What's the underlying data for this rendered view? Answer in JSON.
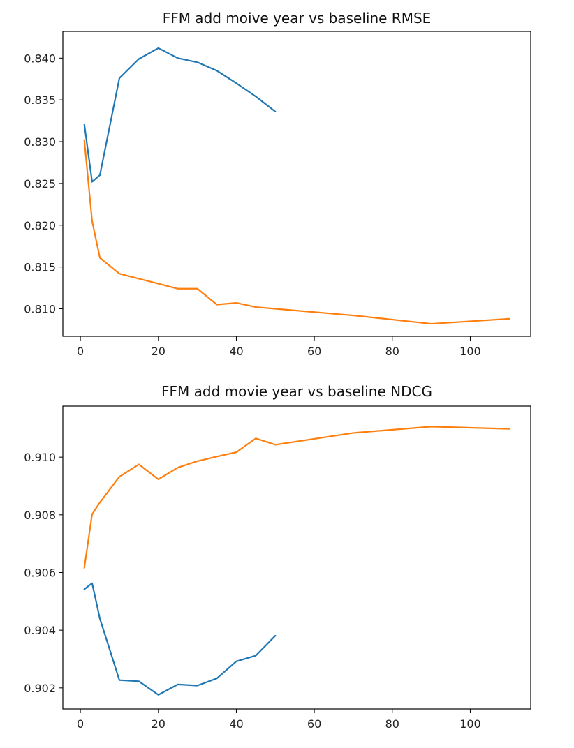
{
  "chart_data": [
    {
      "type": "line",
      "title": "FFM add moive year vs baseline RMSE",
      "xlabel": "",
      "ylabel": "",
      "xlim": [
        -4.5,
        115.5
      ],
      "ylim": [
        0.8067,
        0.8432
      ],
      "xticks": [
        0,
        20,
        40,
        60,
        80,
        100
      ],
      "yticks": [
        0.81,
        0.815,
        0.82,
        0.825,
        0.83,
        0.835,
        0.84
      ],
      "ytick_labels": [
        "0.810",
        "0.815",
        "0.820",
        "0.825",
        "0.830",
        "0.835",
        "0.840"
      ],
      "grid": false,
      "series": [
        {
          "color": "#1f77b4",
          "x": [
            1,
            3,
            5,
            10,
            15,
            20,
            25,
            30,
            35,
            40,
            45,
            50
          ],
          "y": [
            0.8321,
            0.8252,
            0.826,
            0.8376,
            0.8399,
            0.8412,
            0.84,
            0.8395,
            0.8385,
            0.837,
            0.8354,
            0.8336
          ]
        },
        {
          "color": "#ff7f0e",
          "x": [
            1,
            3,
            5,
            10,
            15,
            20,
            25,
            30,
            35,
            40,
            45,
            50,
            70,
            90,
            110
          ],
          "y": [
            0.8302,
            0.8205,
            0.8161,
            0.8142,
            0.8136,
            0.813,
            0.8124,
            0.8124,
            0.8105,
            0.8107,
            0.8102,
            0.81,
            0.8092,
            0.8082,
            0.8088
          ]
        }
      ]
    },
    {
      "type": "line",
      "title": "FFM add movie year vs baseline NDCG",
      "xlabel": "",
      "ylabel": "",
      "xlim": [
        -4.5,
        115.5
      ],
      "ylim": [
        0.90127,
        0.91177
      ],
      "xticks": [
        0,
        20,
        40,
        60,
        80,
        100
      ],
      "yticks": [
        0.902,
        0.904,
        0.906,
        0.908,
        0.91
      ],
      "ytick_labels": [
        "0.902",
        "0.904",
        "0.906",
        "0.908",
        "0.910"
      ],
      "grid": false,
      "series": [
        {
          "color": "#1f77b4",
          "x": [
            1,
            3,
            5,
            10,
            15,
            20,
            25,
            30,
            35,
            40,
            45,
            50
          ],
          "y": [
            0.90542,
            0.90563,
            0.9044,
            0.90227,
            0.90223,
            0.90176,
            0.90212,
            0.90208,
            0.90233,
            0.90292,
            0.90312,
            0.90381
          ]
        },
        {
          "color": "#ff7f0e",
          "x": [
            1,
            3,
            5,
            10,
            15,
            20,
            25,
            30,
            35,
            40,
            45,
            50,
            70,
            90,
            110
          ],
          "y": [
            0.90616,
            0.90802,
            0.90843,
            0.90932,
            0.90975,
            0.90923,
            0.90964,
            0.90986,
            0.91002,
            0.91017,
            0.91065,
            0.91043,
            0.91084,
            0.91106,
            0.91098
          ]
        }
      ]
    }
  ]
}
